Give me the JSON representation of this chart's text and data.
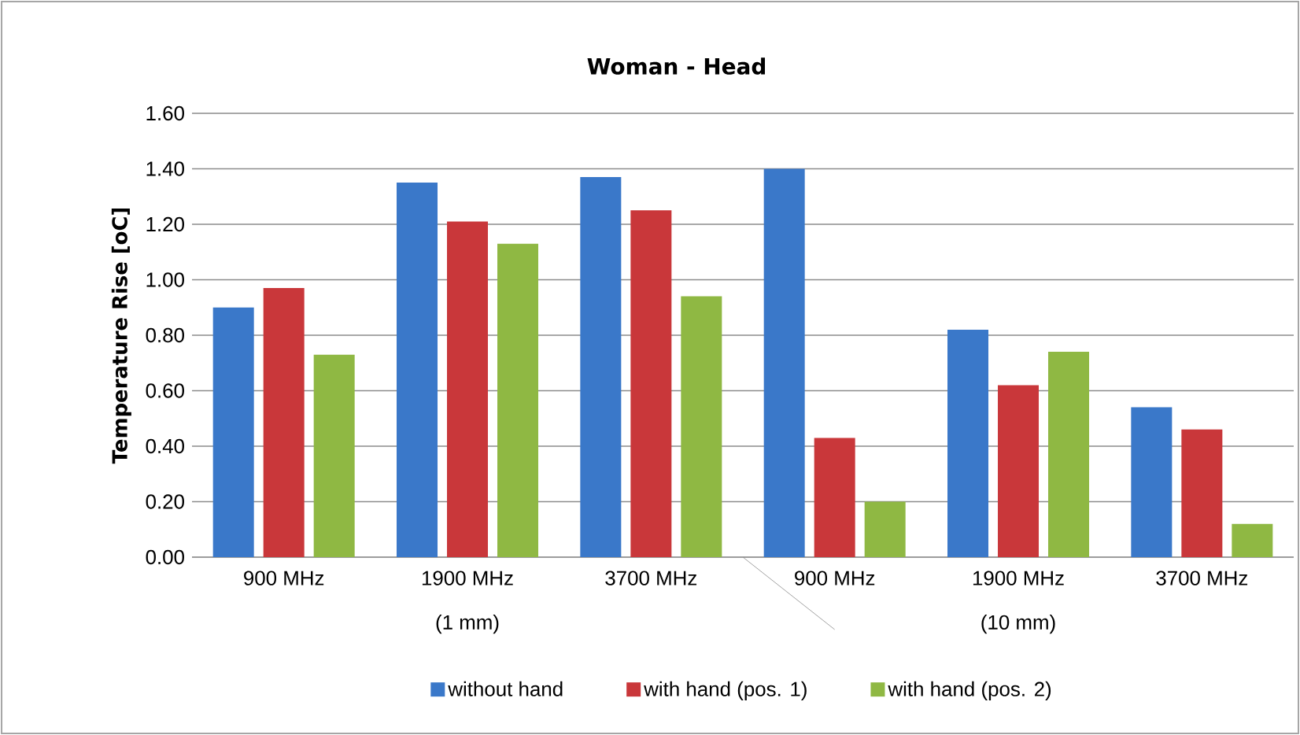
{
  "chart_data": {
    "type": "bar",
    "title": "Woman -  Head",
    "ylabel": "Temperature Rise  [oC]",
    "categories": [
      "900 MHz",
      "1900 MHz",
      "3700 MHz",
      "900 MHz",
      "1900 MHz",
      "3700 MHz"
    ],
    "annotations": [
      "(1 mm)",
      "(10 mm)"
    ],
    "series": [
      {
        "name": "without hand",
        "color": "#3a78c9",
        "values": [
          0.9,
          1.35,
          1.37,
          1.4,
          0.82,
          0.54
        ]
      },
      {
        "name": "with hand (pos. 1)",
        "color": "#c9373a",
        "values": [
          0.97,
          1.21,
          1.25,
          0.43,
          0.62,
          0.46
        ]
      },
      {
        "name": "with hand (pos. 2)",
        "color": "#8fb843",
        "values": [
          0.73,
          1.13,
          0.94,
          0.2,
          0.74,
          0.12
        ]
      }
    ],
    "ylim": [
      0,
      1.6
    ],
    "yticks": [
      {
        "value": 0,
        "label": "0.00"
      },
      {
        "value": 0.2,
        "label": "0.20"
      },
      {
        "value": 0.4,
        "label": "0.40"
      },
      {
        "value": 0.6,
        "label": "0.60"
      },
      {
        "value": 0.8,
        "label": "0.80"
      },
      {
        "value": 1.0,
        "label": "1.00"
      },
      {
        "value": 1.2,
        "label": "1.20"
      },
      {
        "value": 1.4,
        "label": "1.40"
      },
      {
        "value": 1.6,
        "label": "1.60"
      }
    ],
    "grid": "y",
    "legend": "bottom"
  }
}
